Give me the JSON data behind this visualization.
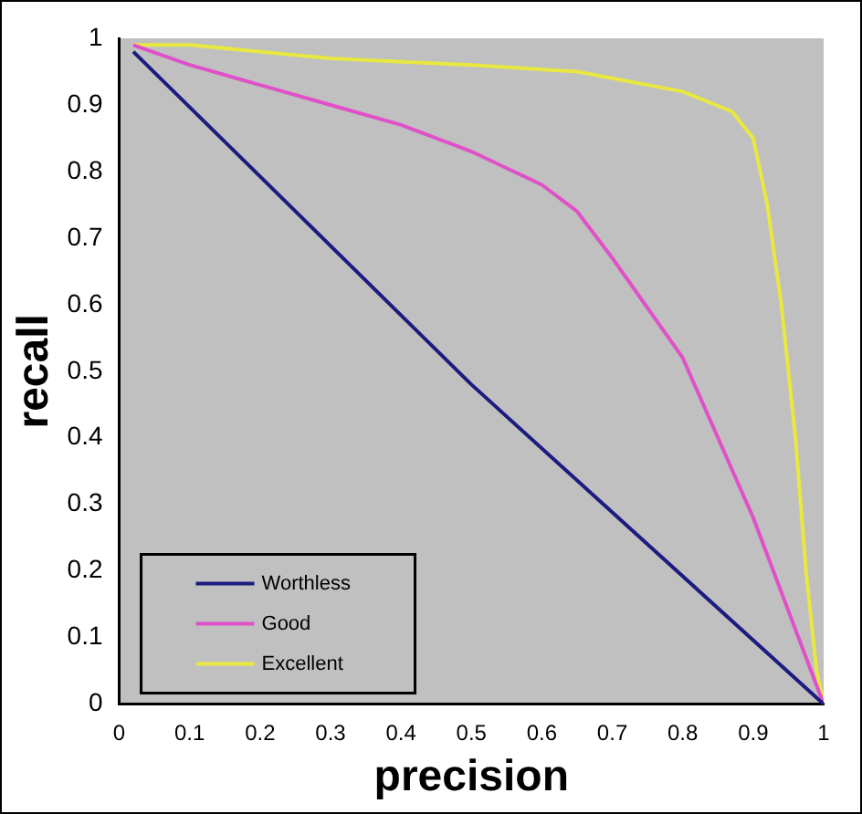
{
  "chart_data": {
    "type": "line",
    "xlabel": "precision",
    "ylabel": "recall",
    "xlim": [
      0,
      1
    ],
    "ylim": [
      0,
      1
    ],
    "xticks": [
      0,
      0.1,
      0.2,
      0.3,
      0.4,
      0.5,
      0.6,
      0.7,
      0.8,
      0.9,
      1
    ],
    "yticks": [
      0,
      0.1,
      0.2,
      0.3,
      0.4,
      0.5,
      0.6,
      0.7,
      0.8,
      0.9,
      1
    ],
    "grid": false,
    "legend": "bottom left",
    "marker": "none",
    "line_style": "solid",
    "series": [
      {
        "name": "Worthless",
        "color": "#1c1c80",
        "x": [
          0.02,
          0.5,
          1
        ],
        "values": [
          0.98,
          0.48,
          0
        ]
      },
      {
        "name": "Good",
        "color": "#e050c8",
        "x": [
          0.02,
          0.1,
          0.2,
          0.3,
          0.4,
          0.5,
          0.6,
          0.65,
          0.7,
          0.8,
          0.9,
          1
        ],
        "values": [
          0.99,
          0.96,
          0.93,
          0.9,
          0.87,
          0.83,
          0.78,
          0.74,
          0.67,
          0.52,
          0.28,
          0
        ]
      },
      {
        "name": "Excellent",
        "color": "#e8e840",
        "x": [
          0.02,
          0.1,
          0.3,
          0.5,
          0.65,
          0.8,
          0.87,
          0.9,
          0.92,
          0.94,
          0.96,
          0.975,
          0.99,
          1
        ],
        "values": [
          0.99,
          0.99,
          0.97,
          0.96,
          0.95,
          0.92,
          0.89,
          0.85,
          0.75,
          0.6,
          0.4,
          0.2,
          0.05,
          0
        ]
      }
    ]
  }
}
